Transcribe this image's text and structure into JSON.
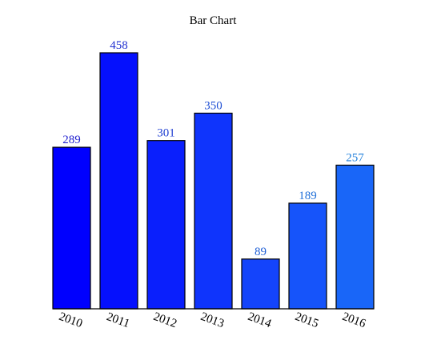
{
  "chart_data": {
    "type": "bar",
    "title": "Bar Chart",
    "xlabel": "",
    "ylabel": "",
    "categories": [
      "2010",
      "2011",
      "2012",
      "2013",
      "2014",
      "2015",
      "2016"
    ],
    "values": [
      289,
      458,
      301,
      350,
      89,
      189,
      257
    ],
    "ylim": [
      0,
      458
    ],
    "grid": false,
    "legend": "none",
    "colors": {
      "bars": [
        "#0000fe",
        "#0510fd",
        "#0a1ffc",
        "#0f34fc",
        "#1444fb",
        "#1654fa",
        "#1966f8"
      ],
      "labels": [
        "#1f1fcf",
        "#1f2fd0",
        "#1f3fd2",
        "#1f4fd4",
        "#1f5fd6",
        "#1f6fd8",
        "#1f7fdb"
      ],
      "outline": "#000000"
    }
  }
}
